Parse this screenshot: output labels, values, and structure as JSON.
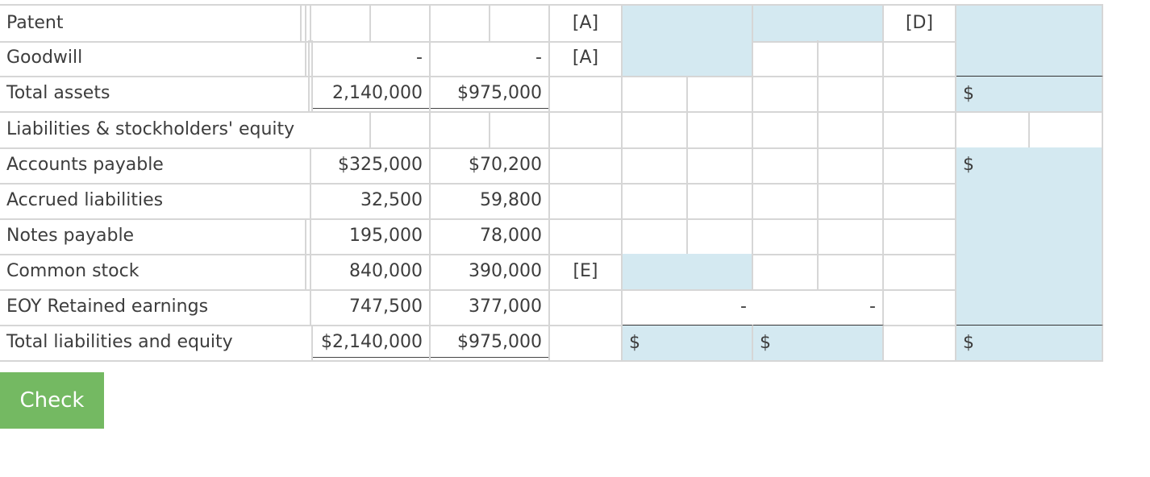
{
  "table": {
    "rows": [
      {
        "label": "Patent",
        "parent": "",
        "sub": "",
        "ref1": "[A]",
        "ref2": "[D]",
        "total_prefix": ""
      },
      {
        "label": "Goodwill",
        "parent": "-",
        "sub": "-",
        "ref1": "[A]",
        "ref2": "",
        "total_prefix": ""
      },
      {
        "label": "Total assets",
        "parent": "2,140,000",
        "sub": "$975,000",
        "ref1": "",
        "ref2": "",
        "total_prefix": "$"
      },
      {
        "label": "Liabilities & stockholders' equity",
        "parent": "",
        "sub": "",
        "ref1": "",
        "ref2": "",
        "total_prefix": ""
      },
      {
        "label": "Accounts payable",
        "parent": "$325,000",
        "sub": "$70,200",
        "ref1": "",
        "ref2": "",
        "total_prefix": "$"
      },
      {
        "label": "Accrued liabilities",
        "parent": "32,500",
        "sub": "59,800",
        "ref1": "",
        "ref2": "",
        "total_prefix": ""
      },
      {
        "label": "Notes payable",
        "parent": "195,000",
        "sub": "78,000",
        "ref1": "",
        "ref2": "",
        "total_prefix": ""
      },
      {
        "label": "Common stock",
        "parent": "840,000",
        "sub": "390,000",
        "ref1": "[E]",
        "ref2": "",
        "total_prefix": ""
      },
      {
        "label": "EOY Retained earnings",
        "parent": "747,500",
        "sub": "377,000",
        "ref1": "",
        "ref2": "",
        "total_prefix": "",
        "dr": "-",
        "cr": "-"
      },
      {
        "label": "Total liabilities and equity",
        "parent": "$2,140,000",
        "sub": "$975,000",
        "ref1": "",
        "ref2": "",
        "total_prefix": "$",
        "dr_prefix": "$",
        "cr_prefix": "$"
      }
    ]
  },
  "check_label": "Check",
  "colors": {
    "input_blue": "#d4e9f1",
    "button_green": "#74b962",
    "grid": "#d6d6d6"
  }
}
